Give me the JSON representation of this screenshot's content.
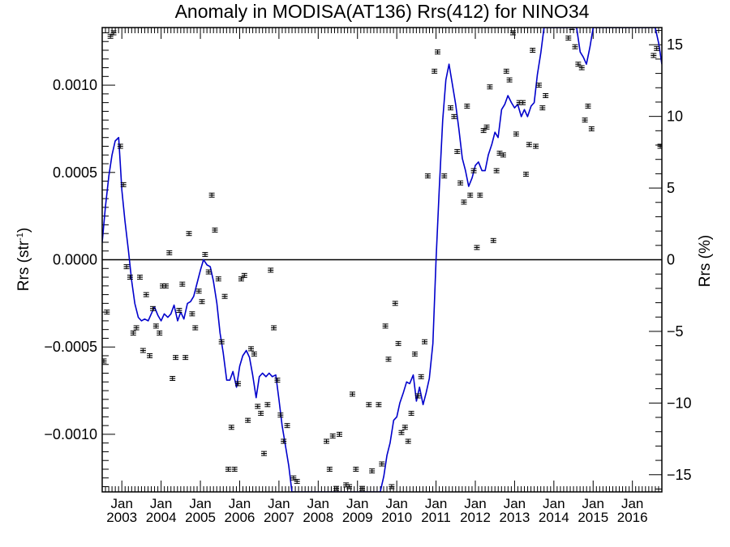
{
  "chart_data": {
    "type": "scatter",
    "title": "Anomaly in MODISA(AT136) Rrs(412) for NINO34",
    "ylabel_left": "Rrs (str",
    "ylabel_left_sup": "-1",
    "ylabel_left_close": ")",
    "ylabel_right": "Rrs (%)",
    "xlabel": "",
    "xlim": [
      2002.5,
      2016.75
    ],
    "ylim": [
      -0.00133,
      0.00133
    ],
    "y2lim": [
      -16.2,
      16.2
    ],
    "zero_line": true,
    "grid": false,
    "legend": "none",
    "left_ticks": [
      {
        "value": 0.001,
        "label": "0.0010"
      },
      {
        "value": 0.0005,
        "label": "0.0005"
      },
      {
        "value": 0,
        "label": "0.0000"
      },
      {
        "value": -0.0005,
        "label": "−0.0005"
      },
      {
        "value": -0.001,
        "label": "−0.0010"
      }
    ],
    "right_ticks": [
      {
        "value": 15,
        "label": "15"
      },
      {
        "value": 10,
        "label": "10"
      },
      {
        "value": 5,
        "label": "5"
      },
      {
        "value": 0,
        "label": "0"
      },
      {
        "value": -5,
        "label": "−5"
      },
      {
        "value": -10,
        "label": "−10"
      },
      {
        "value": -15,
        "label": "−15"
      }
    ],
    "x_ticks": [
      {
        "value": 2003,
        "month": "Jan",
        "year": "2003"
      },
      {
        "value": 2004,
        "month": "Jan",
        "year": "2004"
      },
      {
        "value": 2005,
        "month": "Jan",
        "year": "2005"
      },
      {
        "value": 2006,
        "month": "Jan",
        "year": "2006"
      },
      {
        "value": 2007,
        "month": "Jan",
        "year": "2007"
      },
      {
        "value": 2008,
        "month": "Jan",
        "year": "2008"
      },
      {
        "value": 2009,
        "month": "Jan",
        "year": "2009"
      },
      {
        "value": 2010,
        "month": "Jan",
        "year": "2010"
      },
      {
        "value": 2011,
        "month": "Jan",
        "year": "2011"
      },
      {
        "value": 2012,
        "month": "Jan",
        "year": "2012"
      },
      {
        "value": 2013,
        "month": "Jan",
        "year": "2013"
      },
      {
        "value": 2014,
        "month": "Jan",
        "year": "2014"
      },
      {
        "value": 2015,
        "month": "Jan",
        "year": "2015"
      },
      {
        "value": 2016,
        "month": "Jan",
        "year": "2016"
      }
    ],
    "series": [
      {
        "kind": "points_with_errorbars",
        "color": "#000000",
        "points": [
          [
            2002.54,
            -0.00058
          ],
          [
            2002.62,
            -0.0003
          ],
          [
            2002.71,
            0.00128
          ],
          [
            2002.79,
            0.0013
          ],
          [
            2002.96,
            0.00065
          ],
          [
            2003.04,
            0.00043
          ],
          [
            2003.12,
            -4e-05
          ],
          [
            2003.21,
            -0.0001
          ],
          [
            2003.29,
            -0.00042
          ],
          [
            2003.37,
            -0.00039
          ],
          [
            2003.46,
            -0.0001
          ],
          [
            2003.54,
            -0.00052
          ],
          [
            2003.62,
            -0.0002
          ],
          [
            2003.71,
            -0.00055
          ],
          [
            2003.79,
            -0.00028
          ],
          [
            2003.87,
            -0.00038
          ],
          [
            2003.96,
            -0.00042
          ],
          [
            2004.04,
            -0.00015
          ],
          [
            2004.12,
            -0.00015
          ],
          [
            2004.21,
            4e-05
          ],
          [
            2004.29,
            -0.00068
          ],
          [
            2004.37,
            -0.00056
          ],
          [
            2004.46,
            -0.00029
          ],
          [
            2004.54,
            -0.00014
          ],
          [
            2004.62,
            -0.00056
          ],
          [
            2004.71,
            0.00015
          ],
          [
            2004.79,
            -0.00031
          ],
          [
            2004.87,
            -0.00039
          ],
          [
            2004.96,
            -0.00018
          ],
          [
            2005.04,
            -0.00024
          ],
          [
            2005.12,
            3e-05
          ],
          [
            2005.21,
            -7e-05
          ],
          [
            2005.29,
            0.00037
          ],
          [
            2005.37,
            0.00017
          ],
          [
            2005.46,
            -0.00011
          ],
          [
            2005.54,
            -0.00047
          ],
          [
            2005.62,
            -0.00021
          ],
          [
            2005.71,
            -0.0012
          ],
          [
            2005.79,
            -0.00096
          ],
          [
            2005.87,
            -0.0012
          ],
          [
            2005.96,
            -0.00071
          ],
          [
            2006.04,
            -0.00011
          ],
          [
            2006.12,
            -9e-05
          ],
          [
            2006.21,
            -0.00092
          ],
          [
            2006.29,
            -0.00051
          ],
          [
            2006.37,
            -0.00054
          ],
          [
            2006.46,
            -0.00084
          ],
          [
            2006.54,
            -0.00088
          ],
          [
            2006.62,
            -0.00111
          ],
          [
            2006.71,
            -0.00083
          ],
          [
            2006.79,
            -6e-05
          ],
          [
            2006.87,
            -0.00039
          ],
          [
            2006.96,
            -0.00069
          ],
          [
            2007.04,
            -0.00089
          ],
          [
            2007.12,
            -0.00104
          ],
          [
            2007.21,
            -0.00095
          ],
          [
            2007.37,
            -0.00125
          ],
          [
            2007.46,
            -0.00127
          ],
          [
            2008.21,
            -0.00104
          ],
          [
            2008.29,
            -0.0012
          ],
          [
            2008.37,
            -0.00101
          ],
          [
            2008.46,
            -0.00131
          ],
          [
            2008.54,
            -0.001
          ],
          [
            2008.71,
            -0.00129
          ],
          [
            2008.79,
            -0.0013
          ],
          [
            2008.87,
            -0.00077
          ],
          [
            2008.96,
            -0.0012
          ],
          [
            2009.12,
            -0.00131
          ],
          [
            2009.29,
            -0.00083
          ],
          [
            2009.37,
            -0.00121
          ],
          [
            2009.54,
            -0.00083
          ],
          [
            2009.62,
            -0.00117
          ],
          [
            2009.71,
            -0.00038
          ],
          [
            2009.79,
            -0.00057
          ],
          [
            2009.87,
            -0.0013
          ],
          [
            2009.96,
            -0.00025
          ],
          [
            2010.04,
            -0.00048
          ],
          [
            2010.12,
            -0.00099
          ],
          [
            2010.21,
            -0.00096
          ],
          [
            2010.29,
            -0.00104
          ],
          [
            2010.37,
            -0.00088
          ],
          [
            2010.46,
            -0.00054
          ],
          [
            2010.54,
            -0.00078
          ],
          [
            2010.62,
            -0.00067
          ],
          [
            2010.71,
            -0.00047
          ],
          [
            2010.79,
            0.00048
          ],
          [
            2010.96,
            0.00108
          ],
          [
            2011.04,
            0.00119
          ],
          [
            2011.21,
            0.00048
          ],
          [
            2011.37,
            0.00087
          ],
          [
            2011.46,
            0.00082
          ],
          [
            2011.54,
            0.00062
          ],
          [
            2011.62,
            0.00044
          ],
          [
            2011.71,
            0.00033
          ],
          [
            2011.79,
            0.00088
          ],
          [
            2011.87,
            0.00037
          ],
          [
            2011.96,
            0.00051
          ],
          [
            2012.04,
            7e-05
          ],
          [
            2012.12,
            0.00037
          ],
          [
            2012.21,
            0.00074
          ],
          [
            2012.29,
            0.00076
          ],
          [
            2012.37,
            0.00099
          ],
          [
            2012.46,
            0.00011
          ],
          [
            2012.54,
            0.00051
          ],
          [
            2012.62,
            0.00061
          ],
          [
            2012.71,
            0.0006
          ],
          [
            2012.79,
            0.00108
          ],
          [
            2012.87,
            0.00103
          ],
          [
            2012.96,
            0.0013
          ],
          [
            2013.04,
            0.00072
          ],
          [
            2013.12,
            0.0009
          ],
          [
            2013.21,
            0.0009
          ],
          [
            2013.29,
            0.00049
          ],
          [
            2013.37,
            0.00066
          ],
          [
            2013.46,
            0.0012
          ],
          [
            2013.54,
            0.00065
          ],
          [
            2013.62,
            0.001
          ],
          [
            2013.71,
            0.00087
          ],
          [
            2013.79,
            0.00094
          ],
          [
            2014.37,
            0.00127
          ],
          [
            2014.46,
            0.00133
          ],
          [
            2014.54,
            0.00122
          ],
          [
            2014.62,
            0.00112
          ],
          [
            2014.71,
            0.0011
          ],
          [
            2014.79,
            0.0008
          ],
          [
            2014.87,
            0.00088
          ],
          [
            2014.96,
            0.00075
          ],
          [
            2016.54,
            0.00117
          ],
          [
            2016.62,
            0.00121
          ],
          [
            2016.71,
            0.00065
          ]
        ]
      },
      {
        "kind": "line",
        "color": "#0000cc",
        "points": [
          [
            2002.5,
            0.0001
          ],
          [
            2002.58,
            0.0003
          ],
          [
            2002.67,
            0.00048
          ],
          [
            2002.75,
            0.0006
          ],
          [
            2002.83,
            0.00068
          ],
          [
            2002.92,
            0.0007
          ],
          [
            2002.96,
            0.00055
          ],
          [
            2003.0,
            0.0004
          ],
          [
            2003.08,
            0.00022
          ],
          [
            2003.17,
            5e-05
          ],
          [
            2003.25,
            -0.00012
          ],
          [
            2003.33,
            -0.00025
          ],
          [
            2003.42,
            -0.00033
          ],
          [
            2003.5,
            -0.00035
          ],
          [
            2003.58,
            -0.00034
          ],
          [
            2003.67,
            -0.00035
          ],
          [
            2003.75,
            -0.00031
          ],
          [
            2003.83,
            -0.00027
          ],
          [
            2003.92,
            -0.00032
          ],
          [
            2004.0,
            -0.00035
          ],
          [
            2004.08,
            -0.00031
          ],
          [
            2004.17,
            -0.00033
          ],
          [
            2004.25,
            -0.00031
          ],
          [
            2004.33,
            -0.00026
          ],
          [
            2004.42,
            -0.00035
          ],
          [
            2004.5,
            -0.0003
          ],
          [
            2004.58,
            -0.00034
          ],
          [
            2004.67,
            -0.00025
          ],
          [
            2004.75,
            -0.00024
          ],
          [
            2004.83,
            -0.00021
          ],
          [
            2004.92,
            -0.00013
          ],
          [
            2005.0,
            -6e-05
          ],
          [
            2005.08,
            0.0
          ],
          [
            2005.17,
            -3e-05
          ],
          [
            2005.25,
            -4e-05
          ],
          [
            2005.33,
            -0.00012
          ],
          [
            2005.42,
            -0.00025
          ],
          [
            2005.5,
            -0.00042
          ],
          [
            2005.58,
            -0.00053
          ],
          [
            2005.67,
            -0.00069
          ],
          [
            2005.75,
            -0.00069
          ],
          [
            2005.83,
            -0.00064
          ],
          [
            2005.92,
            -0.00073
          ],
          [
            2006.0,
            -0.00061
          ],
          [
            2006.08,
            -0.00055
          ],
          [
            2006.17,
            -0.00052
          ],
          [
            2006.25,
            -0.00056
          ],
          [
            2006.33,
            -0.00066
          ],
          [
            2006.42,
            -0.00079
          ],
          [
            2006.5,
            -0.00067
          ],
          [
            2006.58,
            -0.00065
          ],
          [
            2006.67,
            -0.00067
          ],
          [
            2006.75,
            -0.00065
          ],
          [
            2006.83,
            -0.00067
          ],
          [
            2006.92,
            -0.00066
          ],
          [
            2007.0,
            -0.0008
          ],
          [
            2007.08,
            -0.00095
          ],
          [
            2007.17,
            -0.00107
          ],
          [
            2007.25,
            -0.00118
          ],
          [
            2007.33,
            -0.00133
          ],
          [
            2009.58,
            -0.00133
          ],
          [
            2009.67,
            -0.00124
          ],
          [
            2009.75,
            -0.00112
          ],
          [
            2009.83,
            -0.00105
          ],
          [
            2009.92,
            -0.00092
          ],
          [
            2010.0,
            -0.0009
          ],
          [
            2010.08,
            -0.00082
          ],
          [
            2010.17,
            -0.00076
          ],
          [
            2010.25,
            -0.0007
          ],
          [
            2010.33,
            -0.00071
          ],
          [
            2010.42,
            -0.00066
          ],
          [
            2010.5,
            -0.00081
          ],
          [
            2010.58,
            -0.00073
          ],
          [
            2010.67,
            -0.00083
          ],
          [
            2010.75,
            -0.00076
          ],
          [
            2010.83,
            -0.00068
          ],
          [
            2010.92,
            -0.00048
          ],
          [
            2011.0,
            0.0
          ],
          [
            2011.08,
            0.0004
          ],
          [
            2011.17,
            0.0008
          ],
          [
            2011.25,
            0.00103
          ],
          [
            2011.33,
            0.00112
          ],
          [
            2011.42,
            0.001
          ],
          [
            2011.5,
            0.00089
          ],
          [
            2011.58,
            0.00075
          ],
          [
            2011.67,
            0.00058
          ],
          [
            2011.75,
            0.00051
          ],
          [
            2011.83,
            0.00042
          ],
          [
            2011.92,
            0.00047
          ],
          [
            2012.0,
            0.00054
          ],
          [
            2012.08,
            0.00056
          ],
          [
            2012.17,
            0.00051
          ],
          [
            2012.25,
            0.00051
          ],
          [
            2012.33,
            0.0006
          ],
          [
            2012.42,
            0.00066
          ],
          [
            2012.5,
            0.00073
          ],
          [
            2012.58,
            0.0007
          ],
          [
            2012.67,
            0.00086
          ],
          [
            2012.75,
            0.00089
          ],
          [
            2012.83,
            0.00094
          ],
          [
            2012.92,
            0.0009
          ],
          [
            2013.0,
            0.00087
          ],
          [
            2013.08,
            0.00089
          ],
          [
            2013.17,
            0.00082
          ],
          [
            2013.25,
            0.00086
          ],
          [
            2013.33,
            0.00082
          ],
          [
            2013.42,
            0.00088
          ],
          [
            2013.5,
            0.0009
          ],
          [
            2013.58,
            0.00106
          ],
          [
            2013.67,
            0.00119
          ],
          [
            2013.75,
            0.00133
          ],
          [
            2014.58,
            0.00133
          ],
          [
            2014.67,
            0.00119
          ],
          [
            2014.75,
            0.00116
          ],
          [
            2014.83,
            0.00112
          ],
          [
            2014.92,
            0.00122
          ],
          [
            2015.0,
            0.00133
          ],
          [
            2016.58,
            0.00133
          ],
          [
            2016.67,
            0.00124
          ],
          [
            2016.75,
            0.00112
          ]
        ]
      }
    ]
  }
}
